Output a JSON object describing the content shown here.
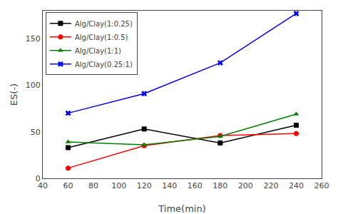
{
  "chart_data": {
    "type": "line",
    "xlabel": "Time(min)",
    "ylabel": "ES(-)",
    "x": [
      60,
      120,
      180,
      240
    ],
    "xlim": [
      40,
      260
    ],
    "ylim": [
      0,
      180
    ],
    "xticks": [
      40,
      60,
      80,
      100,
      120,
      140,
      160,
      180,
      200,
      220,
      240,
      260
    ],
    "yticks": [
      0,
      50,
      100,
      150
    ],
    "grid": false,
    "legend": "upper left",
    "series": [
      {
        "name": "Alg/Clay(1:0.25)",
        "color": "black",
        "marker": "square",
        "line_style": "solid",
        "values": [
          33,
          53,
          38,
          57
        ]
      },
      {
        "name": "Alg/Clay(1:0.5)",
        "color": "red",
        "marker": "circle",
        "line_style": "solid",
        "values": [
          11,
          35,
          46,
          48
        ]
      },
      {
        "name": "Alg/Clay(1:1)",
        "color": "green",
        "marker": "triangle-up",
        "line_style": "solid",
        "values": [
          39,
          36,
          45,
          69
        ]
      },
      {
        "name": "Alg/Clay(0.25:1)",
        "color": "blue",
        "marker": "x",
        "line_style": "solid",
        "values": [
          70,
          91,
          124,
          177
        ]
      }
    ]
  }
}
